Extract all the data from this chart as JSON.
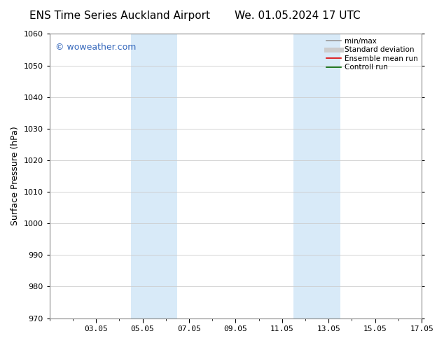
{
  "title_left": "ENS Time Series Auckland Airport",
  "title_right": "We. 01.05.2024 17 UTC",
  "ylabel": "Surface Pressure (hPa)",
  "ylim": [
    970,
    1060
  ],
  "yticks": [
    970,
    980,
    990,
    1000,
    1010,
    1020,
    1030,
    1040,
    1050,
    1060
  ],
  "x_min": 0,
  "x_max": 16,
  "xtick_labels": [
    "03.05",
    "05.05",
    "07.05",
    "09.05",
    "11.05",
    "13.05",
    "15.05",
    "17.05"
  ],
  "xtick_positions": [
    2,
    4,
    6,
    8,
    10,
    12,
    14,
    16
  ],
  "shaded_bands": [
    {
      "x_start": 3.5,
      "x_end": 5.5
    },
    {
      "x_start": 10.5,
      "x_end": 12.5
    }
  ],
  "band_color": "#d8eaf8",
  "watermark_text": "© woweather.com",
  "watermark_color": "#3366bb",
  "legend_items": [
    {
      "label": "min/max",
      "color": "#999999",
      "lw": 1.2,
      "style": "solid"
    },
    {
      "label": "Standard deviation",
      "color": "#cccccc",
      "lw": 5,
      "style": "solid"
    },
    {
      "label": "Ensemble mean run",
      "color": "#dd0000",
      "lw": 1.2,
      "style": "solid"
    },
    {
      "label": "Controll run",
      "color": "#006600",
      "lw": 1.2,
      "style": "solid"
    }
  ],
  "bg_color": "#ffffff",
  "grid_color": "#cccccc",
  "title_fontsize": 11,
  "axis_label_fontsize": 9,
  "tick_fontsize": 8,
  "legend_fontsize": 7.5,
  "watermark_fontsize": 9
}
